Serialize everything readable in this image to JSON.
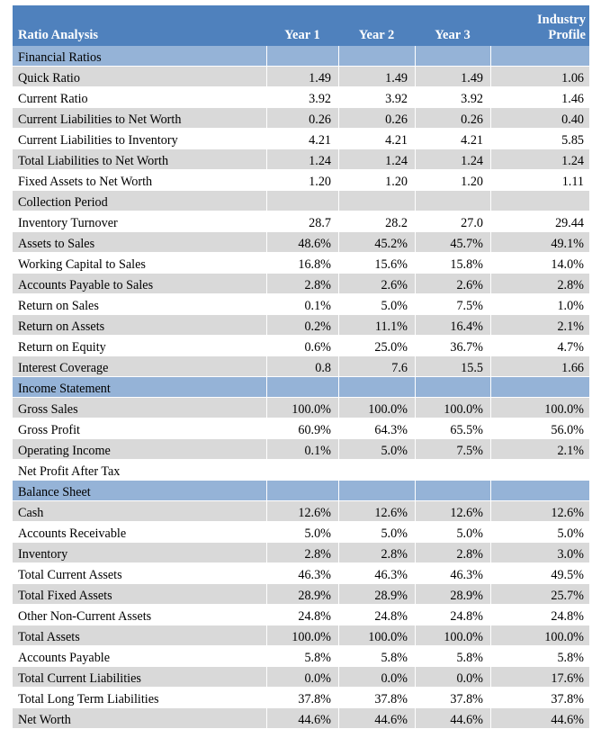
{
  "header": {
    "label": "Ratio Analysis",
    "year1": "Year 1",
    "year2": "Year 2",
    "year3": "Year 3",
    "industry_line1": "Industry",
    "industry_line2": "Profile"
  },
  "rows": [
    {
      "type": "section",
      "label": "Financial Ratios",
      "values": [
        "",
        "",
        "",
        ""
      ]
    },
    {
      "type": "shade",
      "label": "Quick Ratio",
      "values": [
        "1.49",
        "1.49",
        "1.49",
        "1.06"
      ]
    },
    {
      "type": "plain",
      "label": "Current Ratio",
      "values": [
        "3.92",
        "3.92",
        "3.92",
        "1.46"
      ]
    },
    {
      "type": "shade",
      "label": "Current Liabilities to Net Worth",
      "values": [
        "0.26",
        "0.26",
        "0.26",
        "0.40"
      ]
    },
    {
      "type": "plain",
      "label": "Current Liabilities to Inventory",
      "values": [
        "4.21",
        "4.21",
        "4.21",
        "5.85"
      ]
    },
    {
      "type": "shade",
      "label": "Total Liabilities  to Net Worth",
      "values": [
        "1.24",
        "1.24",
        "1.24",
        "1.24"
      ]
    },
    {
      "type": "plain",
      "label": "Fixed Assets to Net Worth",
      "values": [
        "1.20",
        "1.20",
        "1.20",
        "1.11"
      ]
    },
    {
      "type": "shade",
      "label": "Collection  Period",
      "values": [
        "",
        "",
        "",
        ""
      ]
    },
    {
      "type": "plain",
      "label": "Inventory Turnover",
      "values": [
        "28.7",
        "28.2",
        "27.0",
        "29.44"
      ]
    },
    {
      "type": "shade",
      "label": "Assets to Sales",
      "values": [
        "48.6%",
        "45.2%",
        "45.7%",
        "49.1%"
      ]
    },
    {
      "type": "plain",
      "label": "Working Capital to Sales",
      "values": [
        "16.8%",
        "15.6%",
        "15.8%",
        "14.0%"
      ]
    },
    {
      "type": "shade",
      "label": "Accounts Payable to Sales",
      "values": [
        "2.8%",
        "2.6%",
        "2.6%",
        "2.8%"
      ]
    },
    {
      "type": "plain",
      "label": "Return on Sales",
      "values": [
        "0.1%",
        "5.0%",
        "7.5%",
        "1.0%"
      ]
    },
    {
      "type": "shade",
      "label": "Return on Assets",
      "values": [
        "0.2%",
        "11.1%",
        "16.4%",
        "2.1%"
      ]
    },
    {
      "type": "plain",
      "label": "Return on Equity",
      "values": [
        "0.6%",
        "25.0%",
        "36.7%",
        "4.7%"
      ]
    },
    {
      "type": "shade",
      "label": "Interest Coverage",
      "values": [
        "0.8",
        "7.6",
        "15.5",
        "1.66"
      ]
    },
    {
      "type": "section",
      "label": "Income Statement",
      "values": [
        "",
        "",
        "",
        ""
      ]
    },
    {
      "type": "shade",
      "label": "Gross Sales",
      "values": [
        "100.0%",
        "100.0%",
        "100.0%",
        "100.0%"
      ]
    },
    {
      "type": "plain",
      "label": "Gross Profit",
      "values": [
        "60.9%",
        "64.3%",
        "65.5%",
        "56.0%"
      ]
    },
    {
      "type": "shade",
      "label": "Operating Income",
      "values": [
        "0.1%",
        "5.0%",
        "7.5%",
        "2.1%"
      ]
    },
    {
      "type": "plain",
      "label": "Net Profit After Tax",
      "values": [
        "",
        "",
        "",
        ""
      ]
    },
    {
      "type": "section",
      "label": "Balance Sheet",
      "values": [
        "",
        "",
        "",
        ""
      ]
    },
    {
      "type": "shade",
      "label": "Cash",
      "values": [
        "12.6%",
        "12.6%",
        "12.6%",
        "12.6%"
      ]
    },
    {
      "type": "plain",
      "label": "Accounts Receivable",
      "values": [
        "5.0%",
        "5.0%",
        "5.0%",
        "5.0%"
      ]
    },
    {
      "type": "shade",
      "label": "Inventory",
      "values": [
        "2.8%",
        "2.8%",
        "2.8%",
        "3.0%"
      ]
    },
    {
      "type": "plain",
      "label": "Total Current Assets",
      "values": [
        "46.3%",
        "46.3%",
        "46.3%",
        "49.5%"
      ]
    },
    {
      "type": "shade",
      "label": "Total Fixed Assets",
      "values": [
        "28.9%",
        "28.9%",
        "28.9%",
        "25.7%"
      ]
    },
    {
      "type": "plain",
      "label": "Other Non-Current Assets",
      "values": [
        "24.8%",
        "24.8%",
        "24.8%",
        "24.8%"
      ]
    },
    {
      "type": "shade",
      "label": "Total Assets",
      "values": [
        "100.0%",
        "100.0%",
        "100.0%",
        "100.0%"
      ]
    },
    {
      "type": "plain",
      "label": "Accounts Payable",
      "values": [
        "5.8%",
        "5.8%",
        "5.8%",
        "5.8%"
      ]
    },
    {
      "type": "shade",
      "label": "Total Current Liabilities",
      "values": [
        "0.0%",
        "0.0%",
        "0.0%",
        "17.6%"
      ]
    },
    {
      "type": "plain",
      "label": "Total Long Term  Liabilities",
      "values": [
        "37.8%",
        "37.8%",
        "37.8%",
        "37.8%"
      ]
    },
    {
      "type": "shade",
      "label": "Net Worth",
      "values": [
        "44.6%",
        "44.6%",
        "44.6%",
        "44.6%"
      ]
    }
  ]
}
